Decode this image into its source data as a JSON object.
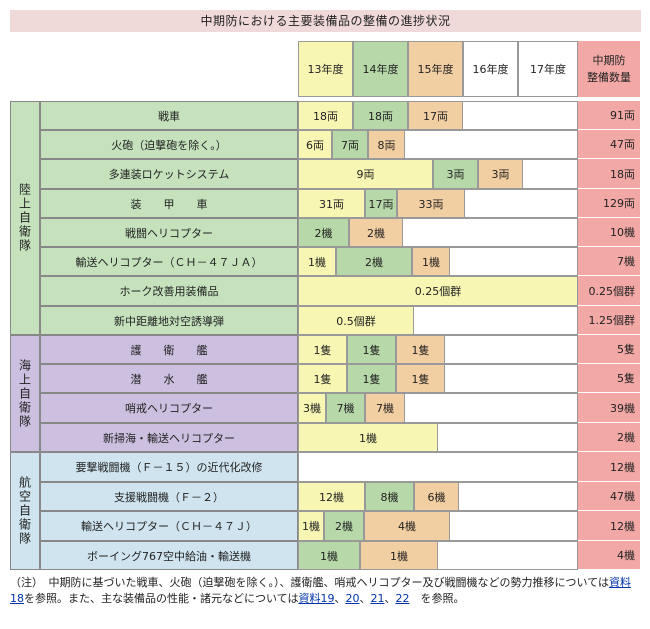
{
  "title": "中期防における主要装備品の整備の進捗状況",
  "years": [
    "13年度",
    "14年度",
    "15年度",
    "16年度",
    "17年度"
  ],
  "total_header": [
    "中期防",
    "整備数量"
  ],
  "colors": {
    "y13": "#f8f6b3",
    "y14": "#b7d9a9",
    "y15": "#f2cfa2",
    "total": "#f2a9a6",
    "gsdf": "#c5e2bd",
    "msdf": "#cdbfe0",
    "asdf": "#cfe4ee"
  },
  "branches": [
    {
      "label": "陸上自衛隊",
      "items": [
        {
          "name": "戦車",
          "segments": [
            "18両",
            "18両",
            "17両"
          ],
          "total": "91両"
        },
        {
          "name": "火砲（迫撃砲を除く。）",
          "segments": [
            "6両",
            "7両",
            "8両"
          ],
          "total": "47両"
        },
        {
          "name": "多連装ロケットシステム",
          "segments": [
            "9両",
            "3両",
            "3両"
          ],
          "total": "18両"
        },
        {
          "name": "装　　甲　　車",
          "segments": [
            "31両",
            "17両",
            "33両"
          ],
          "total": "129両"
        },
        {
          "name": "戦闘ヘリコプター",
          "segments": [
            "2機",
            "2機"
          ],
          "total": "10機"
        },
        {
          "name": "輸送ヘリコプター（ＣＨ－４７ＪＡ）",
          "segments": [
            "1機",
            "2機",
            "1機"
          ],
          "total": "7機"
        },
        {
          "name": "ホーク改善用装備品",
          "segments": [
            "0.25個群"
          ],
          "total": "0.25個群"
        },
        {
          "name": "新中距離地対空誘導弾",
          "segments": [
            "0.5個群"
          ],
          "total": "1.25個群"
        }
      ]
    },
    {
      "label": "海上自衛隊",
      "items": [
        {
          "name": "護　　衛　　艦",
          "segments": [
            "1隻",
            "1隻",
            "1隻"
          ],
          "total": "5隻"
        },
        {
          "name": "潜　　水　　艦",
          "segments": [
            "1隻",
            "1隻",
            "1隻"
          ],
          "total": "5隻"
        },
        {
          "name": "哨戒ヘリコプター",
          "segments": [
            "3機",
            "7機",
            "7機"
          ],
          "total": "39機"
        },
        {
          "name": "新掃海・輸送ヘリコプター",
          "segments": [
            "1機"
          ],
          "total": "2機"
        }
      ]
    },
    {
      "label": "航空自衛隊",
      "items": [
        {
          "name": "要撃戦闘機（Ｆ－１５）の近代化改修",
          "segments": [],
          "total": "12機"
        },
        {
          "name": "支援戦闘機（Ｆ－２）",
          "segments": [
            "12機",
            "8機",
            "6機"
          ],
          "total": "47機"
        },
        {
          "name": "輸送ヘリコプター（ＣＨ－４７Ｊ）",
          "segments": [
            "1機",
            "2機",
            "4機"
          ],
          "total": "12機"
        },
        {
          "name": "ボーイング767空中給油・輸送機",
          "segments": [
            "1機",
            "1機"
          ],
          "total": "4機"
        }
      ]
    }
  ],
  "note": {
    "prefix": "（注）　中期防に基づいた戦車、火砲（迫撃砲を除く。）、護衛艦、哨戒ヘリコプター及び戦闘機などの勢力推移については",
    "link1": "資料18",
    "mid": "を参照。また、主な装備品の性能・諸元などについては",
    "links2": [
      "資料19",
      "20",
      "21",
      "22"
    ],
    "suffix": "を参照。"
  }
}
